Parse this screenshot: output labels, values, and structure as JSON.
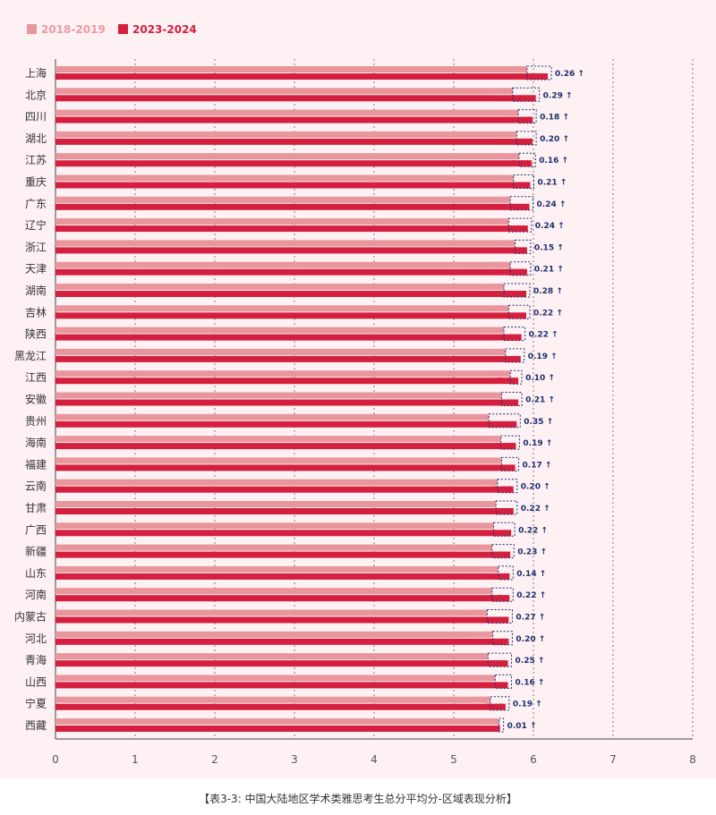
{
  "colors": {
    "series_2018": "#e8959b",
    "series_2023": "#d41f3f",
    "diff_box": "#1f2f6e",
    "grid": "#9a9a9a",
    "label_2018": "#ea9aa2",
    "label_2023": "#d41f3f",
    "diff_text": "#1f2f6e"
  },
  "caption": "【表3-3: 中国大陆地区学术类雅思考生总分平均分-区域表现分析】",
  "chart_data": {
    "type": "bar",
    "orientation": "horizontal",
    "legend_position": "top-left",
    "grid": "vertical-dotted",
    "xlim": [
      0,
      8
    ],
    "xticks": [
      "0",
      "1",
      "2",
      "3",
      "4",
      "5",
      "6",
      "7",
      "8"
    ],
    "categories": [
      "上海",
      "北京",
      "四川",
      "湖北",
      "江苏",
      "重庆",
      "广东",
      "辽宁",
      "浙江",
      "天津",
      "湖南",
      "吉林",
      "陕西",
      "黑龙江",
      "江西",
      "安徽",
      "贵州",
      "海南",
      "福建",
      "云南",
      "甘肃",
      "广西",
      "新疆",
      "山东",
      "河南",
      "内蒙古",
      "河北",
      "青海",
      "山西",
      "宁夏",
      "西藏"
    ],
    "series": [
      {
        "name": "2018-2019",
        "values": [
          5.92,
          5.74,
          5.81,
          5.79,
          5.82,
          5.75,
          5.71,
          5.69,
          5.77,
          5.71,
          5.63,
          5.69,
          5.63,
          5.65,
          5.71,
          5.6,
          5.44,
          5.59,
          5.6,
          5.55,
          5.53,
          5.5,
          5.48,
          5.56,
          5.48,
          5.42,
          5.49,
          5.43,
          5.52,
          5.46,
          5.57
        ],
        "labels": [
          "5.92",
          "5.74",
          "5.81",
          "5.79",
          "5.82",
          "5.75",
          "5.71",
          "5.69",
          "5.77",
          "5.71",
          "5.63",
          "5.69",
          "5.63",
          "5.65",
          "5.71",
          "5.60",
          "5.44",
          "5.59",
          "5.60",
          "5.55",
          "5.53",
          "5.50",
          "5.48",
          "5.56",
          "5.48",
          "5.42",
          "5.49",
          "5.43",
          "5.52",
          "5.46",
          "5.57"
        ]
      },
      {
        "name": "2023-2024",
        "values": [
          6.18,
          6.03,
          5.99,
          5.99,
          5.98,
          5.96,
          5.95,
          5.93,
          5.92,
          5.92,
          5.91,
          5.91,
          5.85,
          5.84,
          5.81,
          5.81,
          5.79,
          5.78,
          5.77,
          5.75,
          5.75,
          5.72,
          5.71,
          5.7,
          5.7,
          5.69,
          5.69,
          5.68,
          5.68,
          5.65,
          5.58
        ],
        "labels": [
          "6.18",
          "6.03",
          "5.99",
          "5.99",
          "5.98",
          "5.96",
          "5.95",
          "5.93",
          "5.92",
          "5.92",
          "5.91",
          "5.91",
          "5.85",
          "5.84",
          "5.81",
          "5.81",
          "5.79",
          "5.78",
          "5.77",
          "5.75",
          "5.75",
          "5.72",
          "5.71",
          "5.70",
          "5.70",
          "5.69",
          "5.69",
          "5.68",
          "5.68",
          "5.65",
          "5.58"
        ]
      }
    ],
    "diff_labels": [
      "0.26 ↑",
      "0.29 ↑",
      "0.18 ↑",
      "0.20 ↑",
      "0.16 ↑",
      "0.21 ↑",
      "0.24 ↑",
      "0.24 ↑",
      "0.15 ↑",
      "0.21 ↑",
      "0.28 ↑",
      "0.22 ↑",
      "0.22 ↑",
      "0.19 ↑",
      "0.10 ↑",
      "0.21 ↑",
      "0.35 ↑",
      "0.19 ↑",
      "0.17 ↑",
      "0.20 ↑",
      "0.22 ↑",
      "0.22 ↑",
      "0.23 ↑",
      "0.14 ↑",
      "0.22 ↑",
      "0.27 ↑",
      "0.20 ↑",
      "0.25 ↑",
      "0.16 ↑",
      "0.19 ↑",
      "0.01 ↑"
    ]
  }
}
